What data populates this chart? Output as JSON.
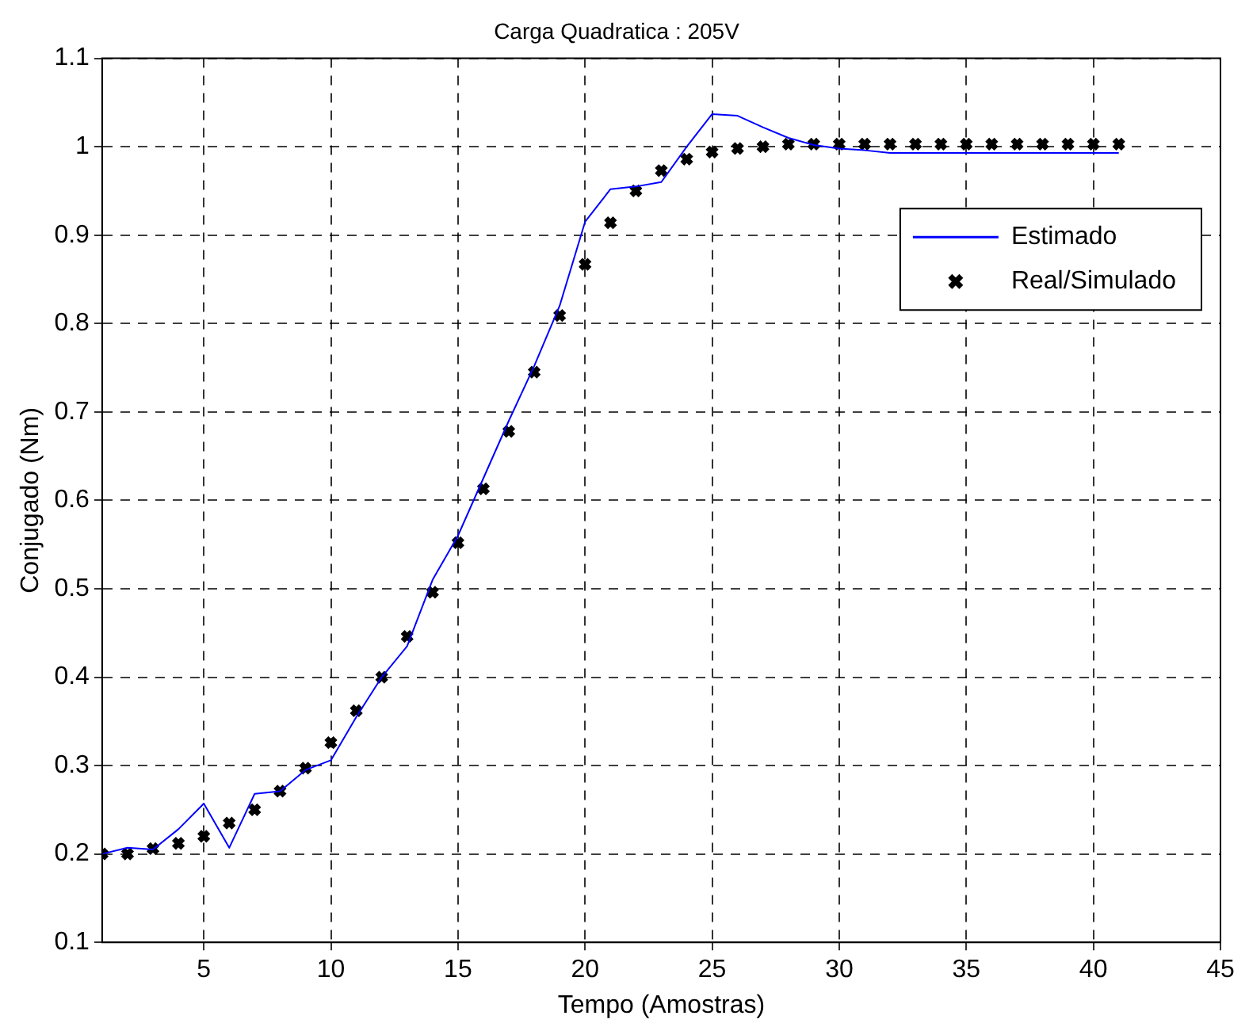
{
  "chart_data": {
    "type": "line",
    "title": "Carga Quadratica : 205V",
    "xlabel": "Tempo (Amostras)",
    "ylabel": "Conjugado (Nm)",
    "xlim": [
      1,
      45
    ],
    "xticks": [
      5,
      10,
      15,
      20,
      25,
      30,
      35,
      40,
      45
    ],
    "ylim": [
      0.1,
      1.1
    ],
    "yticks": [
      0.1,
      0.2,
      0.3,
      0.4,
      0.5,
      0.6,
      0.7,
      0.8,
      0.9,
      1,
      1.1
    ],
    "grid": true,
    "legend": "top right",
    "x": [
      1,
      2,
      3,
      4,
      5,
      6,
      7,
      8,
      9,
      10,
      11,
      12,
      13,
      14,
      15,
      16,
      17,
      18,
      19,
      20,
      21,
      22,
      23,
      24,
      25,
      26,
      27,
      28,
      29,
      30,
      31,
      32,
      33,
      34,
      35,
      36,
      37,
      38,
      39,
      40,
      41
    ],
    "series": [
      {
        "name": "Estimado",
        "type": "line",
        "color": "#0000ff",
        "marker": "none",
        "line_style": "solid",
        "values": [
          0.2,
          0.207,
          0.205,
          0.228,
          0.257,
          0.207,
          0.268,
          0.271,
          0.295,
          0.306,
          0.355,
          0.4,
          0.435,
          0.51,
          0.56,
          0.625,
          0.69,
          0.752,
          0.82,
          0.915,
          0.952,
          0.955,
          0.96,
          1.0,
          1.037,
          1.035,
          1.022,
          1.01,
          1.002,
          0.998,
          0.996,
          0.993,
          0.993,
          0.993,
          0.993,
          0.993,
          0.993,
          0.993,
          0.993,
          0.993,
          0.993
        ]
      },
      {
        "name": "Real/Simulado",
        "type": "scatter",
        "color": "#000000",
        "marker": "cross",
        "values": [
          0.2,
          0.2,
          0.206,
          0.212,
          0.22,
          0.235,
          0.25,
          0.271,
          0.297,
          0.326,
          0.362,
          0.4,
          0.446,
          0.496,
          0.552,
          0.613,
          0.678,
          0.745,
          0.809,
          0.867,
          0.914,
          0.95,
          0.973,
          0.986,
          0.994,
          0.998,
          1.0,
          1.003,
          1.003,
          1.003,
          1.003,
          1.003,
          1.003,
          1.003,
          1.003,
          1.003,
          1.003,
          1.003,
          1.003,
          1.003,
          1.003
        ]
      }
    ]
  }
}
